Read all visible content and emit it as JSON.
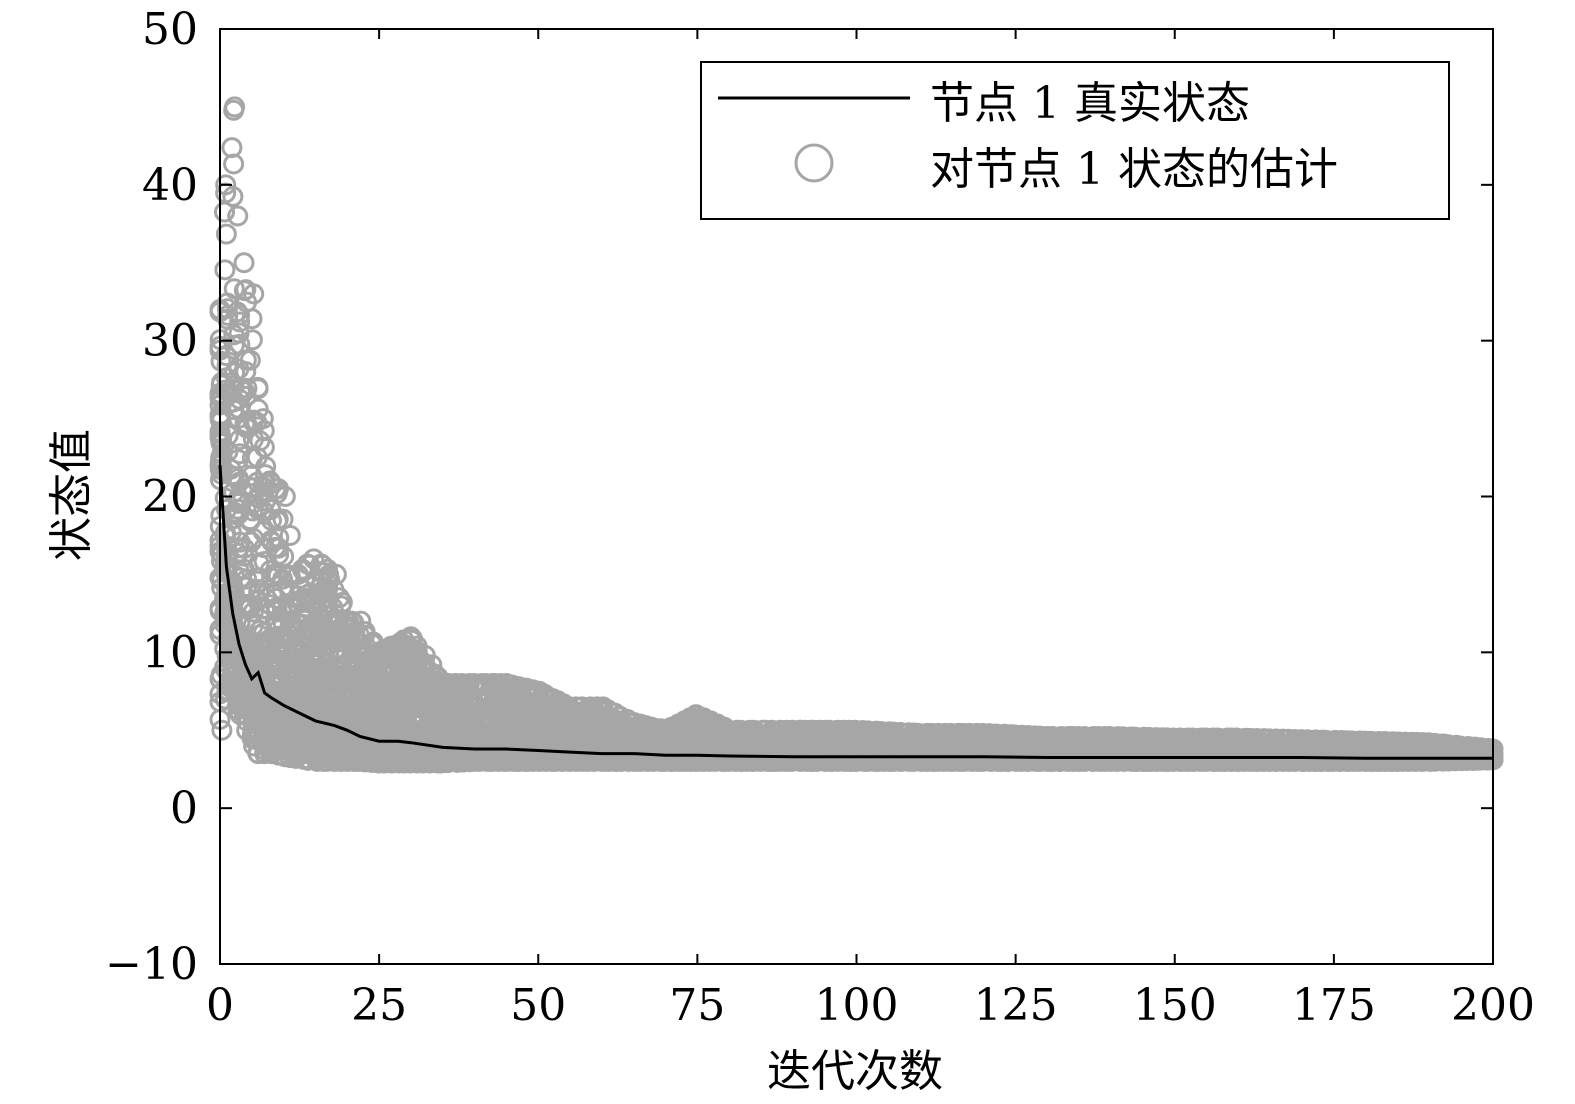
{
  "chart_data": {
    "type": "line+scatter",
    "xlabel": "迭代次数",
    "ylabel": "状态值",
    "xlim": [
      0,
      200
    ],
    "ylim": [
      -10,
      50
    ],
    "x_ticks": [
      0,
      25,
      50,
      75,
      100,
      125,
      150,
      175,
      200
    ],
    "y_ticks": [
      -10,
      0,
      10,
      20,
      30,
      40,
      50
    ],
    "y_tick_labels": [
      "−10",
      "0",
      "10",
      "20",
      "30",
      "40",
      "50"
    ],
    "grid": false,
    "legend_position": "top-right",
    "series": [
      {
        "name": "节点 1 真实状态",
        "style": "line",
        "color": "#000000",
        "x": [
          0,
          1,
          2,
          3,
          4,
          5,
          6,
          7,
          8,
          10,
          12,
          15,
          18,
          20,
          22,
          25,
          28,
          30,
          35,
          40,
          45,
          50,
          55,
          60,
          65,
          70,
          75,
          80,
          90,
          100,
          110,
          120,
          130,
          140,
          150,
          160,
          170,
          180,
          190,
          200
        ],
        "y": [
          22,
          15.5,
          12.5,
          10.5,
          9.2,
          8.3,
          8.7,
          7.4,
          7.1,
          6.6,
          6.2,
          5.6,
          5.3,
          5.0,
          4.6,
          4.3,
          4.3,
          4.2,
          3.9,
          3.8,
          3.8,
          3.7,
          3.6,
          3.5,
          3.5,
          3.4,
          3.4,
          3.35,
          3.3,
          3.3,
          3.3,
          3.3,
          3.25,
          3.25,
          3.25,
          3.25,
          3.25,
          3.2,
          3.2,
          3.2
        ]
      },
      {
        "name": "对节点 1 状态的估计",
        "style": "scatter",
        "marker": "circle",
        "color": "#a6a6a6",
        "envelope_x": [
          0,
          1,
          2,
          3,
          4,
          5,
          6,
          7,
          8,
          10,
          12,
          15,
          18,
          20,
          22,
          25,
          30,
          35,
          40,
          45,
          50,
          55,
          60,
          65,
          70,
          75,
          80,
          90,
          100,
          110,
          120,
          130,
          140,
          150,
          160,
          170,
          180,
          190,
          200
        ],
        "envelope_max": [
          32,
          40,
          45,
          38,
          35,
          33,
          27,
          25,
          21,
          20,
          15,
          16,
          15,
          12,
          12,
          10,
          11,
          8,
          8,
          8,
          7.5,
          6.5,
          6.5,
          5.5,
          5,
          6,
          5,
          5,
          5,
          4.8,
          4.8,
          4.6,
          4.6,
          4.5,
          4.5,
          4.4,
          4.3,
          4.2,
          3.8
        ],
        "envelope_min": [
          5,
          7,
          8,
          6,
          5,
          4,
          3.5,
          3.5,
          3.5,
          3.3,
          3.2,
          3.0,
          3.0,
          3.0,
          3.0,
          2.9,
          2.9,
          2.9,
          3.0,
          3.0,
          3.0,
          3.0,
          3.0,
          3.0,
          3.0,
          3.0,
          3.0,
          3.0,
          3.0,
          3.0,
          3.0,
          3.0,
          3.0,
          3.0,
          3.0,
          3.0,
          3.0,
          3.0,
          3.1
        ]
      }
    ]
  }
}
